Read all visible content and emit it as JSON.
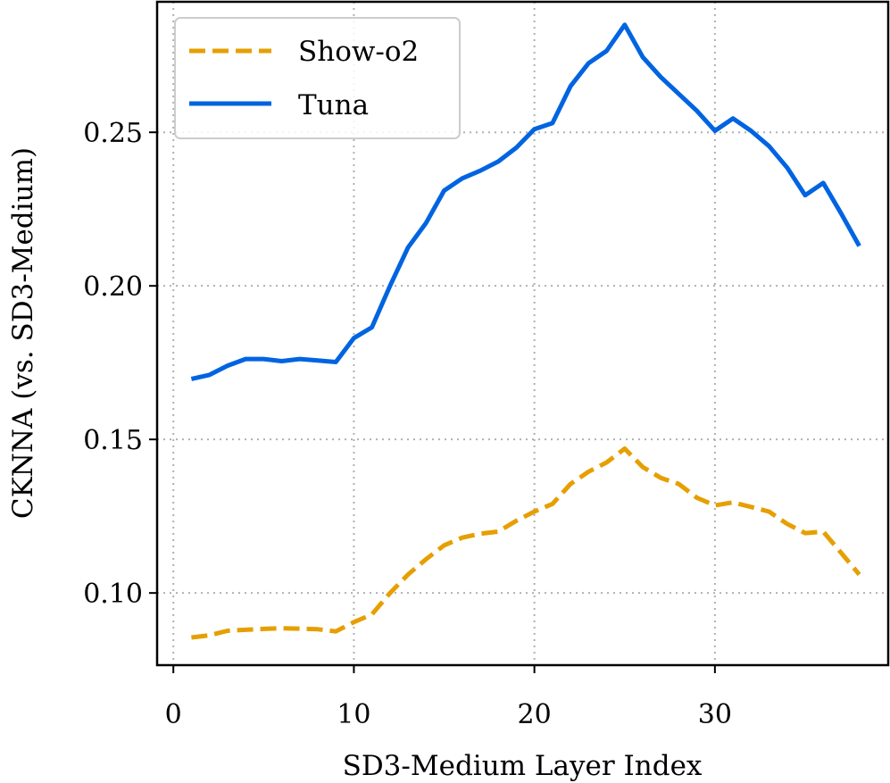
{
  "chart_data": {
    "type": "line",
    "title": "",
    "xlabel": "SD3-Medium Layer Index",
    "ylabel": "CKNNA (vs. SD3-Medium)",
    "xlim": [
      -0.9,
      39.6
    ],
    "ylim": [
      0.0765,
      0.2925
    ],
    "xticks": [
      0,
      10,
      20,
      30
    ],
    "xtick_labels": [
      "0",
      "10",
      "20",
      "30"
    ],
    "yticks": [
      0.1,
      0.15,
      0.2,
      0.25
    ],
    "ytick_labels": [
      "0.10",
      "0.15",
      "0.20",
      "0.25"
    ],
    "grid": true,
    "legend_position": "top-left",
    "series": [
      {
        "name": "Show-o2",
        "color": "#e69f00",
        "style": "dashed",
        "x": [
          1,
          2,
          3,
          4,
          5,
          6,
          7,
          8,
          9,
          10,
          11,
          12,
          13,
          14,
          15,
          16,
          17,
          18,
          19,
          20,
          21,
          22,
          23,
          24,
          25,
          26,
          27,
          28,
          29,
          30,
          31,
          32,
          33,
          34,
          35,
          36,
          37,
          38
        ],
        "values": [
          0.0855,
          0.0862,
          0.0877,
          0.088,
          0.0883,
          0.0885,
          0.0884,
          0.0882,
          0.0875,
          0.0905,
          0.093,
          0.1,
          0.106,
          0.111,
          0.1155,
          0.118,
          0.1193,
          0.12,
          0.1235,
          0.1265,
          0.129,
          0.1355,
          0.1395,
          0.1425,
          0.147,
          0.141,
          0.1375,
          0.1355,
          0.131,
          0.1285,
          0.1295,
          0.128,
          0.1265,
          0.1225,
          0.1195,
          0.12,
          0.113,
          0.106
        ]
      },
      {
        "name": "Tuna",
        "color": "#0064e1",
        "style": "solid",
        "x": [
          1,
          2,
          3,
          4,
          5,
          6,
          7,
          8,
          9,
          10,
          11,
          12,
          13,
          14,
          15,
          16,
          17,
          18,
          19,
          20,
          21,
          22,
          23,
          24,
          25,
          26,
          27,
          28,
          29,
          30,
          31,
          32,
          33,
          34,
          35,
          36,
          37,
          38
        ],
        "values": [
          0.1697,
          0.171,
          0.174,
          0.1762,
          0.1762,
          0.1755,
          0.1762,
          0.1757,
          0.1752,
          0.183,
          0.1865,
          0.2,
          0.2125,
          0.2205,
          0.231,
          0.235,
          0.2375,
          0.2405,
          0.245,
          0.251,
          0.253,
          0.265,
          0.2725,
          0.2765,
          0.285,
          0.2745,
          0.268,
          0.2625,
          0.257,
          0.2505,
          0.2545,
          0.2505,
          0.2455,
          0.2385,
          0.2295,
          0.2335,
          0.2235,
          0.213
        ]
      }
    ]
  }
}
